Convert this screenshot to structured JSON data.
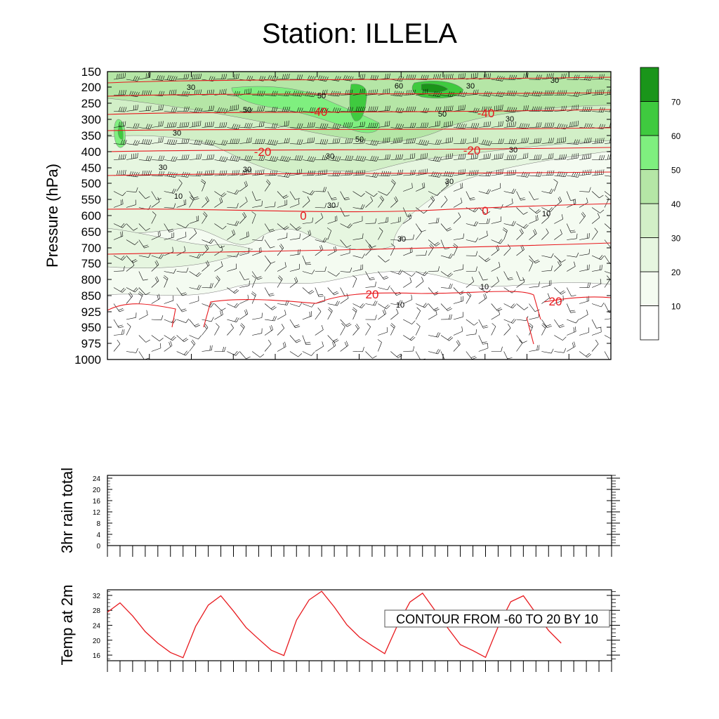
{
  "title": "Station: ILLELA",
  "colors": {
    "temp_contour": "#e8191e",
    "barb": "#000000",
    "fill_levels": [
      "#ffffff",
      "#f4fbf1",
      "#e6f6e0",
      "#d2efc7",
      "#b5e6a6",
      "#7fef7f",
      "#3fca3f",
      "#1a951a"
    ]
  },
  "chart_data": [
    {
      "type": "heatmap",
      "name": "wind-cross-section",
      "ylabel": "Pressure (hPa)",
      "y_ticks": [
        150,
        200,
        250,
        300,
        350,
        400,
        450,
        500,
        550,
        600,
        650,
        700,
        750,
        800,
        850,
        925,
        950,
        975,
        1000
      ],
      "ylim": [
        1000,
        150
      ],
      "x_tick_count": 13,
      "wind_speed_colorbar": {
        "levels": [
          10,
          20,
          30,
          40,
          50,
          60,
          70
        ]
      },
      "temperature_contours": [
        {
          "value": -40,
          "label": "-40"
        },
        {
          "value": -20,
          "label": "-20"
        },
        {
          "value": 0,
          "label": "0"
        },
        {
          "value": 20,
          "label": "20"
        }
      ],
      "wind_speed_contour_labels": [
        "10",
        "30",
        "50",
        "60"
      ],
      "grid": false
    },
    {
      "type": "line",
      "name": "rain-panel",
      "ylabel": "3hr rain total",
      "y_ticks": [
        0,
        4,
        8,
        12,
        16,
        20,
        24
      ],
      "ylim": [
        0,
        25
      ],
      "series": [],
      "x_tick_count": 41
    },
    {
      "type": "line",
      "name": "temp-panel",
      "ylabel": "Temp at 2m",
      "y_ticks": [
        16,
        20,
        24,
        28,
        32
      ],
      "ylim": [
        14.5,
        33.5
      ],
      "x_tick_count": 41,
      "annotation": "CONTOUR FROM -60 TO 20 BY 10",
      "x": [
        0,
        1,
        2,
        3,
        4,
        5,
        6,
        7,
        8,
        9,
        10,
        11,
        12,
        13,
        14,
        15,
        16,
        17,
        18,
        19,
        20,
        21,
        22,
        23,
        24,
        25,
        26,
        27,
        28,
        29,
        30,
        31,
        32,
        33,
        34,
        35,
        36
      ],
      "series": [
        {
          "values": [
            27.5,
            30,
            26.5,
            22.3,
            19.2,
            16.7,
            15.3,
            23.7,
            29.4,
            31.9,
            27.8,
            23.4,
            20.3,
            17.3,
            15.9,
            25.4,
            30.8,
            33.1,
            28.9,
            24.1,
            20.8,
            18.5,
            16.4,
            23.9,
            30.2,
            32.6,
            27.9,
            23.3,
            18.8,
            17.2,
            15.4,
            23.6,
            30.3,
            31.9,
            27.2,
            22.6,
            19.2
          ]
        }
      ]
    }
  ]
}
